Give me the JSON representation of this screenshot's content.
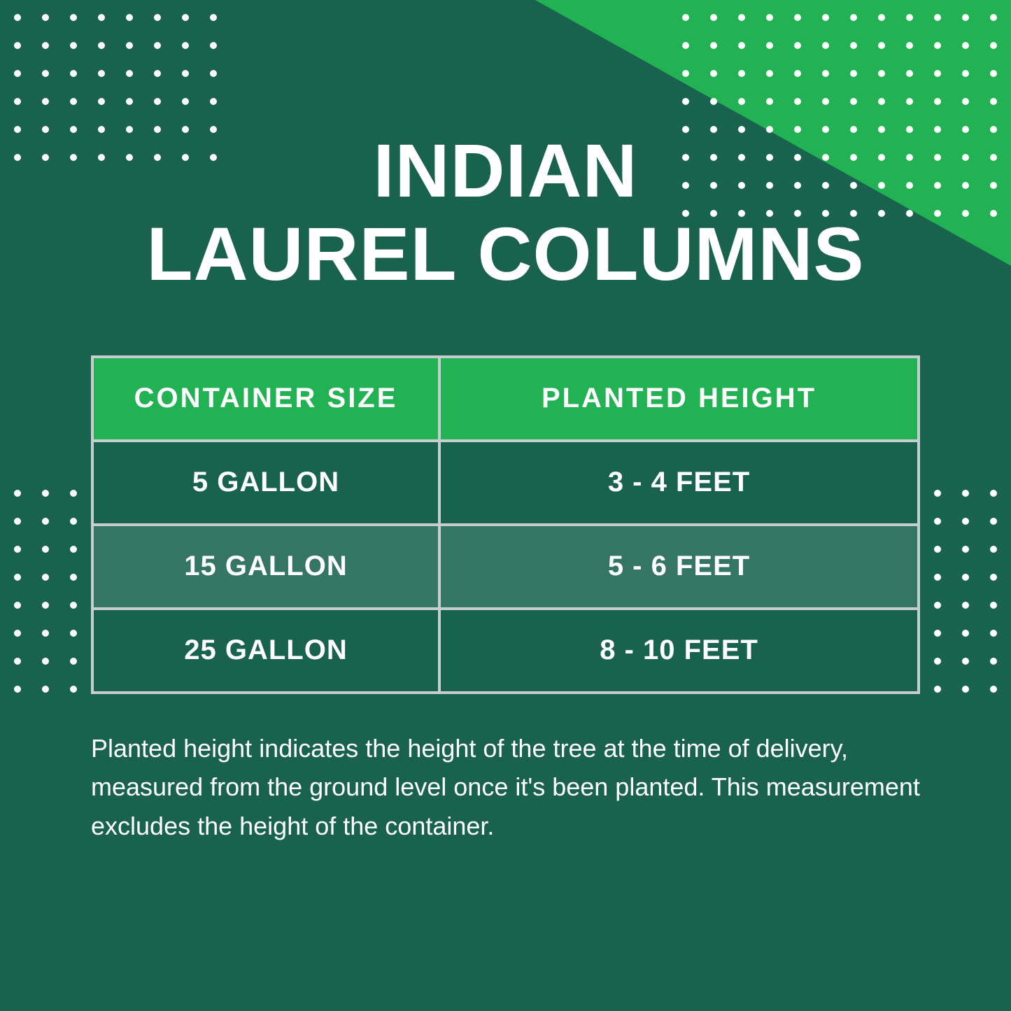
{
  "title_line1": "INDIAN",
  "title_line2": "LAUREL COLUMNS",
  "table": {
    "headers": {
      "col1": "CONTAINER SIZE",
      "col2": "PLANTED HEIGHT"
    },
    "rows": [
      {
        "size": "5 GALLON",
        "height": "3 - 4 FEET"
      },
      {
        "size": "15 GALLON",
        "height": "5 - 6 FEET"
      },
      {
        "size": "25 GALLON",
        "height": "8 - 10 FEET"
      }
    ]
  },
  "footnote": "Planted height indicates the height of the tree at the time of delivery, measured from the ground level once it's been planted. This measurement excludes the height of the container.",
  "colors": {
    "background": "#19624e",
    "accent": "#22b153",
    "border": "#c6cfcd",
    "text": "#ffffff",
    "row_alt_overlay": "rgba(255,255,255,0.12)"
  }
}
